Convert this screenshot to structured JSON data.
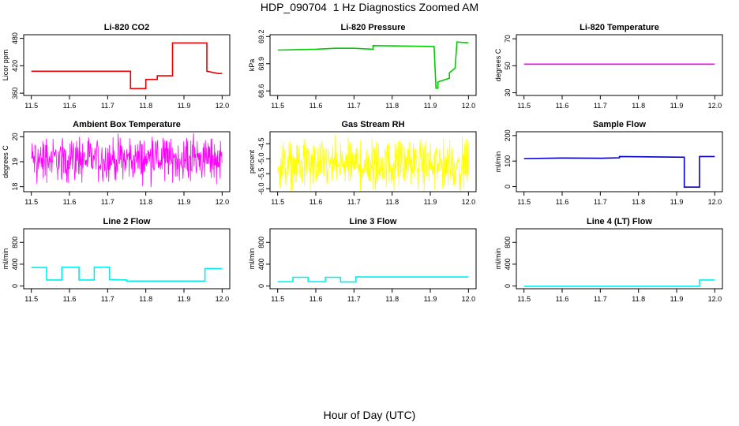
{
  "page": {
    "title": "HDP_090704  1 Hz Diagnostics Zoomed AM",
    "xlabel": "Hour of Day (UTC)"
  },
  "chart_data": [
    {
      "type": "line",
      "title": "Li-820 CO2",
      "xlabel": "",
      "ylabel": "Licor ppm",
      "color": "#ee0000",
      "xlim": [
        11.48,
        12.02
      ],
      "ylim": [
        355,
        488
      ],
      "xticks": [
        "11.5",
        "11.6",
        "11.7",
        "11.8",
        "11.9",
        "12.0"
      ],
      "yticks": [
        360,
        420,
        480
      ],
      "series": [
        {
          "x": [
            11.5,
            11.76,
            11.76,
            11.8,
            11.8,
            11.83,
            11.83,
            11.87,
            11.87,
            11.96,
            11.96,
            11.99,
            12.0
          ],
          "y": [
            408,
            408,
            370,
            370,
            390,
            390,
            398,
            398,
            470,
            470,
            408,
            403,
            403
          ]
        }
      ]
    },
    {
      "type": "line",
      "title": "Li-820 Pressure",
      "xlabel": "",
      "ylabel": "kPa",
      "color": "#00cc00",
      "xlim": [
        11.48,
        12.02
      ],
      "ylim": [
        68.55,
        69.22
      ],
      "xticks": [
        "11.5",
        "11.6",
        "11.7",
        "11.8",
        "11.9",
        "12.0"
      ],
      "yticks": [
        68.6,
        68.9,
        69.2
      ],
      "series": [
        {
          "x": [
            11.5,
            11.6,
            11.65,
            11.7,
            11.75,
            11.75,
            11.91,
            11.915,
            11.92,
            11.92,
            11.95,
            11.95,
            11.965,
            11.97,
            12.0
          ],
          "y": [
            69.05,
            69.06,
            69.07,
            69.07,
            69.06,
            69.1,
            69.09,
            68.63,
            68.63,
            68.7,
            68.74,
            68.8,
            68.85,
            69.14,
            69.13
          ]
        }
      ]
    },
    {
      "type": "line",
      "title": "Li-820 Temperature",
      "xlabel": "",
      "ylabel": "degrees C",
      "color": "#ff00ff",
      "xlim": [
        11.48,
        12.02
      ],
      "ylim": [
        28,
        73
      ],
      "xticks": [
        "11.5",
        "11.6",
        "11.7",
        "11.8",
        "11.9",
        "12.0"
      ],
      "yticks": [
        30,
        50,
        70
      ],
      "series": [
        {
          "x": [
            11.5,
            12.0
          ],
          "y": [
            51.2,
            51.2
          ]
        }
      ]
    },
    {
      "type": "line",
      "title": "Ambient Box Temperature",
      "xlabel": "",
      "ylabel": "degrees C",
      "color": "#ff00ff",
      "xlim": [
        11.48,
        12.02
      ],
      "ylim": [
        17.8,
        20.2
      ],
      "xticks": [
        "11.5",
        "11.6",
        "11.7",
        "11.8",
        "11.9",
        "12.0"
      ],
      "yticks": [
        18.0,
        19.0,
        20.0
      ],
      "series": [
        {
          "x": [
            11.5,
            12.0
          ],
          "y": [
            19.1,
            19.1
          ],
          "noise_range": [
            18.1,
            20.0
          ]
        }
      ]
    },
    {
      "type": "line",
      "title": "Gas Stream RH",
      "xlabel": "",
      "ylabel": "percent",
      "color": "#ffff00",
      "xlim": [
        11.48,
        12.02
      ],
      "ylim": [
        -6.1,
        -4.1
      ],
      "xticks": [
        "11.5",
        "11.6",
        "11.7",
        "11.8",
        "11.9",
        "12.0"
      ],
      "yticks": [
        -6.0,
        -5.5,
        -5.0,
        -4.5
      ],
      "series": [
        {
          "x": [
            11.5,
            12.0
          ],
          "y": [
            -5.2,
            -5.2
          ],
          "noise_range": [
            -6.1,
            -4.3
          ]
        }
      ]
    },
    {
      "type": "line",
      "title": "Sample Flow",
      "xlabel": "",
      "ylabel": "ml/min",
      "color": "#0000cc",
      "xlim": [
        11.48,
        12.02
      ],
      "ylim": [
        -20,
        215
      ],
      "xticks": [
        "11.5",
        "11.6",
        "11.7",
        "11.8",
        "11.9",
        "12.0"
      ],
      "yticks": [
        0,
        100,
        200
      ],
      "series": [
        {
          "x": [
            11.5,
            11.6,
            11.7,
            11.75,
            11.75,
            11.8,
            11.92,
            11.92,
            11.96,
            11.96,
            12.0
          ],
          "y": [
            110,
            112,
            111,
            113,
            118,
            117,
            115,
            -2,
            -2,
            118,
            118
          ]
        }
      ]
    },
    {
      "type": "line",
      "title": "Line 2 Flow",
      "xlabel": "",
      "ylabel": "ml/min",
      "color": "#00eeee",
      "xlim": [
        11.48,
        12.02
      ],
      "ylim": [
        -50,
        1050
      ],
      "xticks": [
        "11.5",
        "11.6",
        "11.7",
        "11.8",
        "11.9",
        "12.0"
      ],
      "yticks": [
        0,
        400,
        800
      ],
      "series": [
        {
          "x": [
            11.5,
            11.54,
            11.54,
            11.58,
            11.58,
            11.625,
            11.625,
            11.665,
            11.665,
            11.705,
            11.705,
            11.75,
            11.75,
            11.955,
            11.955,
            12.0
          ],
          "y": [
            340,
            340,
            110,
            110,
            345,
            345,
            110,
            110,
            345,
            345,
            120,
            110,
            90,
            90,
            320,
            320
          ]
        }
      ]
    },
    {
      "type": "line",
      "title": "Line 3 Flow",
      "xlabel": "",
      "ylabel": "ml/min",
      "color": "#00eeee",
      "xlim": [
        11.48,
        12.02
      ],
      "ylim": [
        -50,
        1050
      ],
      "xticks": [
        "11.5",
        "11.6",
        "11.7",
        "11.8",
        "11.9",
        "12.0"
      ],
      "yticks": [
        0,
        400,
        800
      ],
      "series": [
        {
          "x": [
            11.5,
            11.54,
            11.54,
            11.58,
            11.58,
            11.625,
            11.625,
            11.665,
            11.665,
            11.705,
            11.705,
            12.0
          ],
          "y": [
            80,
            80,
            160,
            160,
            80,
            80,
            160,
            160,
            75,
            75,
            165,
            165
          ]
        }
      ]
    },
    {
      "type": "line",
      "title": "Line 4 (LT) Flow",
      "xlabel": "",
      "ylabel": "ml/min",
      "color": "#00eeee",
      "xlim": [
        11.48,
        12.02
      ],
      "ylim": [
        -50,
        1050
      ],
      "xticks": [
        "11.5",
        "11.6",
        "11.7",
        "11.8",
        "11.9",
        "12.0"
      ],
      "yticks": [
        0,
        400,
        800
      ],
      "series": [
        {
          "x": [
            11.5,
            11.96,
            11.96,
            12.0
          ],
          "y": [
            -5,
            -5,
            110,
            110
          ]
        }
      ]
    }
  ]
}
